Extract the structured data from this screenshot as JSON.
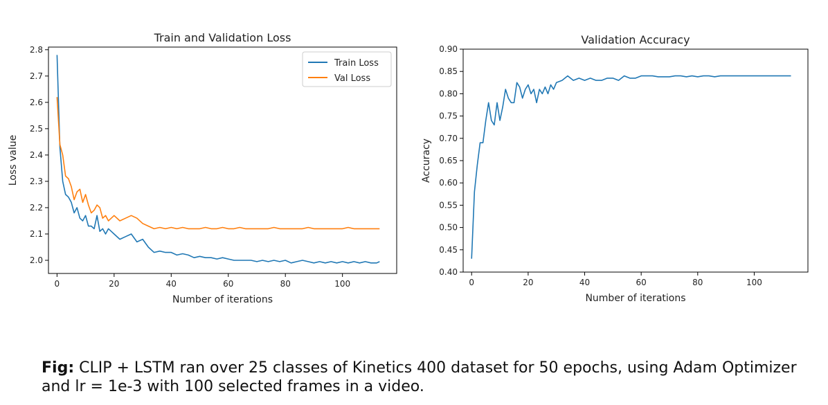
{
  "chart_data": [
    {
      "type": "line",
      "title": "Train and Validation Loss",
      "xlabel": "Number of iterations",
      "ylabel": "Loss value",
      "xlim": [
        -3,
        119
      ],
      "ylim": [
        1.95,
        2.81
      ],
      "xticks": [
        0,
        20,
        40,
        60,
        80,
        100
      ],
      "yticks": [
        2.0,
        2.1,
        2.2,
        2.3,
        2.4,
        2.5,
        2.6,
        2.7,
        2.8
      ],
      "ytick_labels": [
        "2.0",
        "2.1",
        "2.2",
        "2.3",
        "2.4",
        "2.5",
        "2.6",
        "2.7",
        "2.8"
      ],
      "grid": false,
      "legend": "top-right",
      "series": [
        {
          "name": "Train Loss",
          "color": "#1f77b4",
          "x": [
            0,
            1,
            2,
            3,
            4,
            5,
            6,
            7,
            8,
            9,
            10,
            11,
            12,
            13,
            14,
            15,
            16,
            17,
            18,
            19,
            20,
            22,
            24,
            26,
            28,
            30,
            32,
            34,
            36,
            38,
            40,
            42,
            44,
            46,
            48,
            50,
            52,
            54,
            56,
            58,
            60,
            62,
            64,
            66,
            68,
            70,
            72,
            74,
            76,
            78,
            80,
            82,
            84,
            86,
            88,
            90,
            92,
            94,
            96,
            98,
            100,
            102,
            104,
            106,
            108,
            110,
            112,
            113
          ],
          "y": [
            2.78,
            2.43,
            2.3,
            2.25,
            2.24,
            2.22,
            2.18,
            2.2,
            2.16,
            2.15,
            2.17,
            2.13,
            2.13,
            2.12,
            2.17,
            2.11,
            2.12,
            2.1,
            2.12,
            2.11,
            2.1,
            2.08,
            2.09,
            2.1,
            2.07,
            2.08,
            2.05,
            2.03,
            2.035,
            2.03,
            2.03,
            2.02,
            2.025,
            2.02,
            2.01,
            2.015,
            2.01,
            2.01,
            2.005,
            2.01,
            2.005,
            2.0,
            2.0,
            2.0,
            2.0,
            1.995,
            2.0,
            1.995,
            2.0,
            1.995,
            2.0,
            1.99,
            1.995,
            2.0,
            1.995,
            1.99,
            1.995,
            1.99,
            1.995,
            1.99,
            1.995,
            1.99,
            1.995,
            1.99,
            1.995,
            1.99,
            1.99,
            1.995
          ]
        },
        {
          "name": "Val Loss",
          "color": "#ff7f0e",
          "x": [
            0,
            1,
            2,
            3,
            4,
            5,
            6,
            7,
            8,
            9,
            10,
            11,
            12,
            13,
            14,
            15,
            16,
            17,
            18,
            19,
            20,
            22,
            24,
            26,
            28,
            30,
            32,
            34,
            36,
            38,
            40,
            42,
            44,
            46,
            48,
            50,
            52,
            54,
            56,
            58,
            60,
            62,
            64,
            66,
            68,
            70,
            72,
            74,
            76,
            78,
            80,
            82,
            84,
            86,
            88,
            90,
            92,
            94,
            96,
            98,
            100,
            102,
            104,
            106,
            108,
            110,
            112,
            113
          ],
          "y": [
            2.62,
            2.44,
            2.4,
            2.32,
            2.31,
            2.28,
            2.23,
            2.26,
            2.27,
            2.22,
            2.25,
            2.21,
            2.18,
            2.19,
            2.21,
            2.2,
            2.16,
            2.17,
            2.15,
            2.16,
            2.17,
            2.15,
            2.16,
            2.17,
            2.16,
            2.14,
            2.13,
            2.12,
            2.125,
            2.12,
            2.125,
            2.12,
            2.125,
            2.12,
            2.12,
            2.12,
            2.125,
            2.12,
            2.12,
            2.125,
            2.12,
            2.12,
            2.125,
            2.12,
            2.12,
            2.12,
            2.12,
            2.12,
            2.125,
            2.12,
            2.12,
            2.12,
            2.12,
            2.12,
            2.125,
            2.12,
            2.12,
            2.12,
            2.12,
            2.12,
            2.12,
            2.125,
            2.12,
            2.12,
            2.12,
            2.12,
            2.12,
            2.12
          ]
        }
      ]
    },
    {
      "type": "line",
      "title": "Validation Accuracy",
      "xlabel": "Number of iterations",
      "ylabel": "Accuracy",
      "xlim": [
        -3,
        119
      ],
      "ylim": [
        0.4,
        0.9
      ],
      "xticks": [
        0,
        20,
        40,
        60,
        80,
        100
      ],
      "yticks": [
        0.4,
        0.45,
        0.5,
        0.55,
        0.6,
        0.65,
        0.7,
        0.75,
        0.8,
        0.85,
        0.9
      ],
      "ytick_labels": [
        "0.40",
        "0.45",
        "0.50",
        "0.55",
        "0.60",
        "0.65",
        "0.70",
        "0.75",
        "0.80",
        "0.85",
        "0.90"
      ],
      "grid": false,
      "series": [
        {
          "color": "#1f77b4",
          "x": [
            0,
            1,
            2,
            3,
            4,
            5,
            6,
            7,
            8,
            9,
            10,
            11,
            12,
            13,
            14,
            15,
            16,
            17,
            18,
            19,
            20,
            21,
            22,
            23,
            24,
            25,
            26,
            27,
            28,
            29,
            30,
            32,
            34,
            36,
            38,
            40,
            42,
            44,
            46,
            48,
            50,
            52,
            54,
            56,
            58,
            60,
            62,
            64,
            66,
            68,
            70,
            72,
            74,
            76,
            78,
            80,
            82,
            84,
            86,
            88,
            90,
            92,
            94,
            96,
            98,
            100,
            102,
            104,
            106,
            108,
            110,
            112,
            113
          ],
          "y": [
            0.43,
            0.58,
            0.64,
            0.69,
            0.69,
            0.74,
            0.78,
            0.74,
            0.73,
            0.78,
            0.74,
            0.77,
            0.81,
            0.79,
            0.78,
            0.78,
            0.825,
            0.815,
            0.79,
            0.81,
            0.82,
            0.8,
            0.81,
            0.78,
            0.81,
            0.8,
            0.815,
            0.8,
            0.82,
            0.81,
            0.825,
            0.83,
            0.84,
            0.83,
            0.835,
            0.83,
            0.835,
            0.83,
            0.83,
            0.835,
            0.835,
            0.83,
            0.84,
            0.835,
            0.835,
            0.84,
            0.84,
            0.84,
            0.838,
            0.838,
            0.838,
            0.84,
            0.84,
            0.838,
            0.84,
            0.838,
            0.84,
            0.84,
            0.838,
            0.84,
            0.84,
            0.84,
            0.84,
            0.84,
            0.84,
            0.84,
            0.84,
            0.84,
            0.84,
            0.84,
            0.84,
            0.84,
            0.84
          ]
        }
      ]
    }
  ],
  "caption": {
    "label": "Fig:",
    "text": " CLIP + LSTM ran over 25 classes of Kinetics 400 dataset for 50 epochs, using Adam Optimizer and lr = 1e-3 with 100 selected frames in a video."
  }
}
